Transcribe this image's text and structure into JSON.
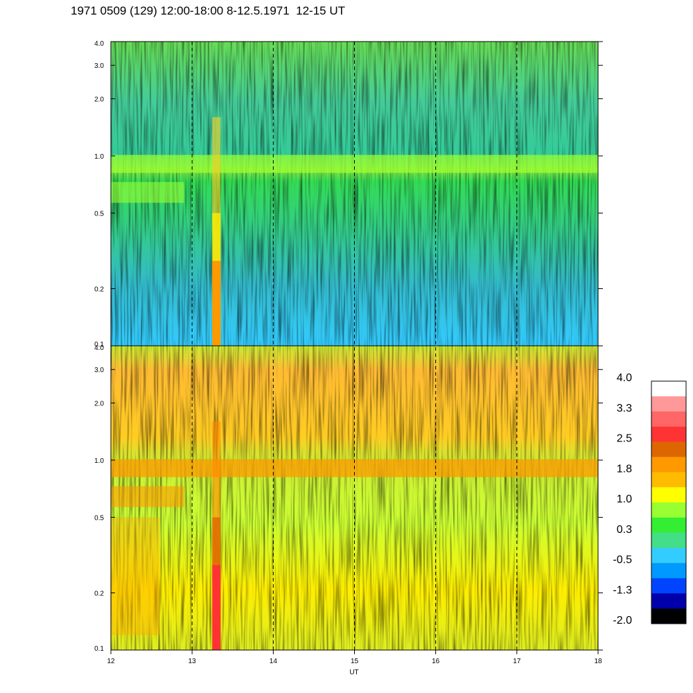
{
  "title": "1971 0509 (129) 12:00-18:00 8-12.5.1971  12-15 UT",
  "chart_data": {
    "type": "heatmap",
    "xlabel": "UT",
    "x_ticks": [
      "12",
      "13",
      "14",
      "15",
      "16",
      "17",
      "18"
    ],
    "xlim": [
      12,
      18
    ],
    "vertical_dashed_lines_at": [
      13,
      14,
      15,
      16,
      17
    ],
    "panels": [
      {
        "name": "",
        "y_scale": "log",
        "ylim": [
          0.1,
          4.0
        ],
        "y_ticks": [
          "0.1",
          "0.2",
          "0.5",
          "1.0",
          "2.0",
          "3.0",
          "4.0"
        ],
        "dominant_background": "cyan-green",
        "band_near_y": 0.9,
        "band_color": "#99ff33",
        "burst_x": 13.3
      },
      {
        "name": "",
        "y_scale": "log",
        "ylim": [
          0.1,
          4.0
        ],
        "y_ticks": [
          "0.1",
          "0.2",
          "0.5",
          "1.0",
          "2.0",
          "3.0",
          "4.0"
        ],
        "dominant_background": "yellow-orange",
        "band_near_y": 0.9,
        "band_color": "#ff9900",
        "burst_x": 13.3
      }
    ],
    "colorbar": {
      "labels": [
        "4.0",
        "3.3",
        "2.5",
        "1.8",
        "1.0",
        "0.3",
        "-0.5",
        "-1.3",
        "-2.0"
      ],
      "colors": [
        "#ffffff",
        "#ff9999",
        "#ff6666",
        "#ff3333",
        "#dd6600",
        "#ff9900",
        "#ffbb00",
        "#ffff00",
        "#99ff33",
        "#33ee33",
        "#44dd88",
        "#33ccff",
        "#0099ff",
        "#0044ff",
        "#0000aa",
        "#000000"
      ]
    }
  }
}
